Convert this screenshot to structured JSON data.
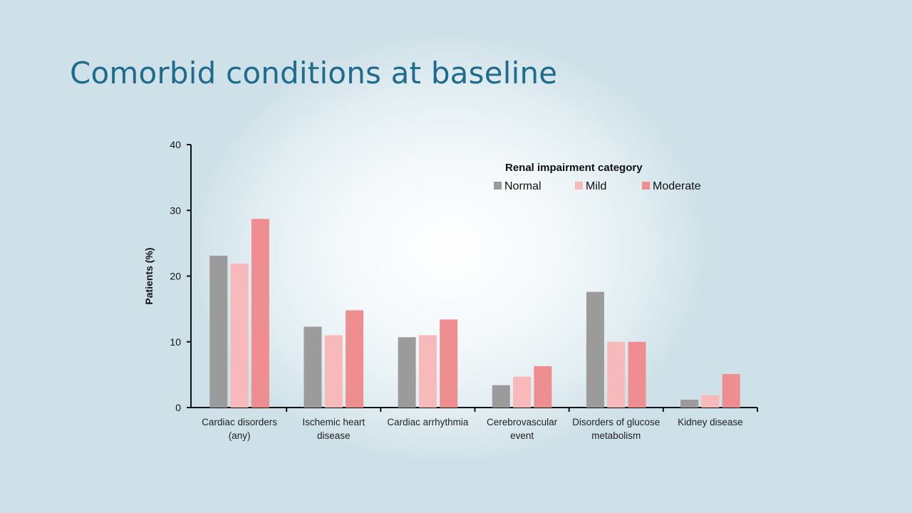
{
  "slide": {
    "title": "Comorbid conditions at baseline"
  },
  "chart_data": {
    "type": "bar",
    "title": "",
    "xlabel": "",
    "ylabel": "Patients (%)",
    "ylim": [
      0,
      40
    ],
    "yticks": [
      0,
      10,
      20,
      30,
      40
    ],
    "grid": false,
    "legend_title": "Renal impairment category",
    "legend_position": "top-right",
    "categories": [
      [
        "Cardiac disorders",
        "(any)"
      ],
      [
        "Ischemic heart",
        "disease"
      ],
      [
        "Cardiac arrhythmia"
      ],
      [
        "Cerebrovascular",
        "event"
      ],
      [
        "Disorders of glucose",
        "metabolism"
      ],
      [
        "Kidney disease"
      ]
    ],
    "series": [
      {
        "name": "Normal",
        "color": "#9b9b9b",
        "values": [
          23.1,
          12.3,
          10.7,
          3.4,
          17.6,
          1.2
        ]
      },
      {
        "name": "Mild",
        "color": "#f7b9b9",
        "values": [
          21.9,
          11.0,
          11.0,
          4.7,
          10.0,
          1.9
        ]
      },
      {
        "name": "Moderate",
        "color": "#ef8e90",
        "values": [
          28.7,
          14.8,
          13.4,
          6.3,
          10.0,
          5.1
        ]
      }
    ]
  }
}
